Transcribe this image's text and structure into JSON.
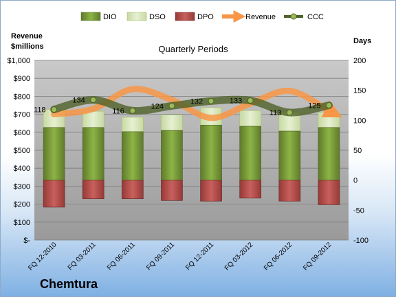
{
  "company": "Chemtura",
  "chart_data": {
    "type": "bar",
    "title": "Quarterly Periods",
    "y_left_label": [
      "Revenue",
      "$millions"
    ],
    "y_right_label": "Days",
    "y_left_range": [
      0,
      1000
    ],
    "y_left_ticks": [
      "$-",
      "$100",
      "$200",
      "$300",
      "$400",
      "$500",
      "$600",
      "$700",
      "$800",
      "$900",
      "$1,000"
    ],
    "y_right_range": [
      -100,
      200
    ],
    "y_right_ticks": [
      "-100",
      "-50",
      "0",
      "50",
      "100",
      "150",
      "200"
    ],
    "categories": [
      "FQ 12-2010",
      "FQ 03-2011",
      "FQ 06-2011",
      "FQ 09-2011",
      "FQ 12-2011",
      "FQ 03-2012",
      "FQ 06-2012",
      "FQ 09-2012"
    ],
    "legend": [
      "DIO",
      "DSO",
      "DPO",
      "Revenue",
      "CCC"
    ],
    "legend_position": "top",
    "grid": true,
    "series": [
      {
        "name": "DIO",
        "axis": "right",
        "kind": "bar",
        "color": "#77933c",
        "values": [
          88,
          88,
          81,
          83,
          92,
          90,
          82,
          88
        ]
      },
      {
        "name": "DSO",
        "axis": "right",
        "kind": "bar-stacked",
        "color": "#d7e4bd",
        "values": [
          30,
          27,
          24,
          26,
          29,
          26,
          31,
          25
        ]
      },
      {
        "name": "DPO",
        "axis": "right",
        "kind": "bar-negative",
        "color": "#c0504d",
        "values": [
          -45,
          -31,
          -31,
          -34,
          -35,
          -30,
          -35,
          -41
        ]
      },
      {
        "name": "Revenue",
        "axis": "left",
        "kind": "line",
        "color": "#f79646",
        "values": [
          700,
          730,
          840,
          780,
          680,
          760,
          830,
          720
        ]
      },
      {
        "name": "CCC",
        "axis": "right",
        "kind": "line",
        "color": "#4f6228",
        "values": [
          118,
          134,
          116,
          124,
          132,
          133,
          113,
          125
        ]
      }
    ],
    "data_labels": [
      "118",
      "134",
      "116",
      "124",
      "132",
      "133",
      "113",
      "125"
    ]
  }
}
